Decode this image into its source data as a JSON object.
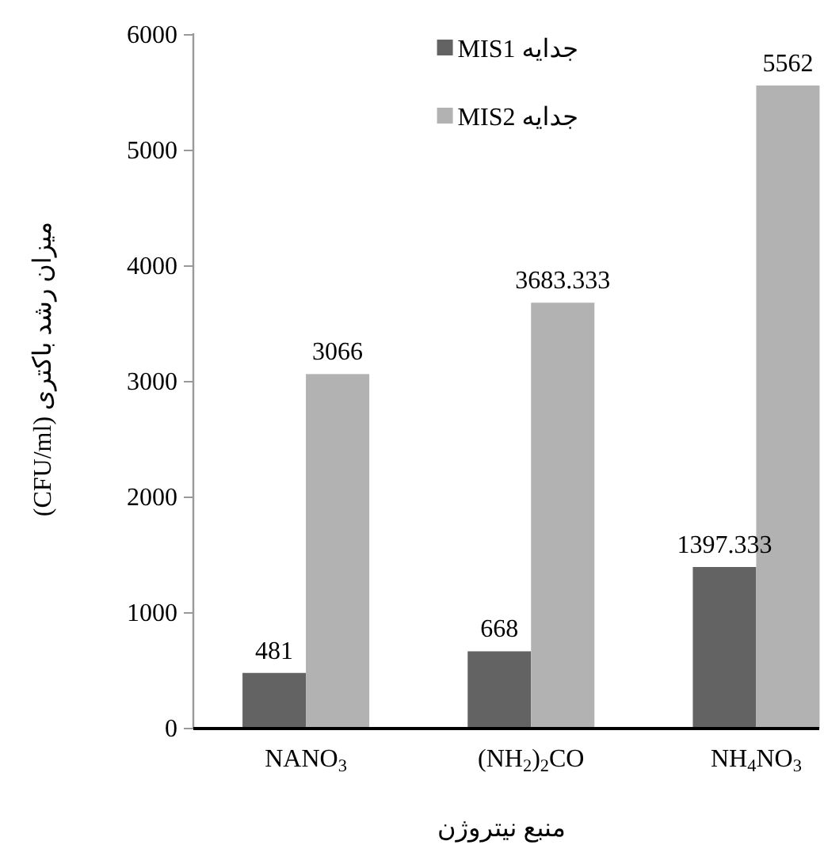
{
  "chart_data": {
    "type": "bar",
    "xlabel": "منبع نیتروژن",
    "ylabel": "میزان رشد باکتری (CFU/ml)",
    "categories": [
      "NANO$_{3}$",
      "(NH$_{2}$)$_{2}$CO",
      "NH$_{4}$NO$_{3}$"
    ],
    "series": [
      {
        "name": "جدایه MIS1",
        "color": "#636363",
        "values": [
          481,
          668,
          1397.333
        ]
      },
      {
        "name": "جدایه MIS2",
        "color": "#b2b2b2",
        "values": [
          3066,
          3683.333,
          5562
        ]
      }
    ],
    "ylim": [
      0,
      6000
    ],
    "yticks": [
      0,
      1000,
      2000,
      3000,
      4000,
      5000,
      6000
    ],
    "data_labels": true,
    "legend": "top",
    "grid": false
  }
}
